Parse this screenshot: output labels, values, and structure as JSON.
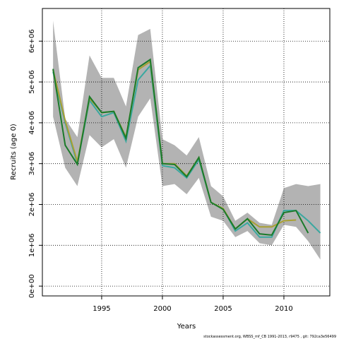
{
  "chart_data": {
    "type": "line",
    "x_label": "Years",
    "y_label": "Recruits (age 0)",
    "footer": "stockassessment.org, WBSS_mf_CB 1991-2013, r9475 , git: 792ca3e56499",
    "x": [
      1991,
      1992,
      1993,
      1994,
      1995,
      1996,
      1997,
      1998,
      1999,
      2000,
      2001,
      2002,
      2003,
      2004,
      2005,
      2006,
      2007,
      2008,
      2009,
      2010,
      2011,
      2012,
      2013
    ],
    "band": {
      "color": "#b3b3b3",
      "upper": [
        6500000,
        4100000,
        3650000,
        5650000,
        5100000,
        5100000,
        4400000,
        6150000,
        6300000,
        3600000,
        3450000,
        3200000,
        3650000,
        2450000,
        2200000,
        1600000,
        1800000,
        1550000,
        1500000,
        2400000,
        2500000,
        2450000,
        2500000
      ],
      "lower": [
        4150000,
        2900000,
        2450000,
        3700000,
        3400000,
        3600000,
        2900000,
        4150000,
        4600000,
        2450000,
        2500000,
        2250000,
        2650000,
        1700000,
        1600000,
        1200000,
        1350000,
        1050000,
        1000000,
        1500000,
        1450000,
        1100000,
        650000
      ]
    },
    "series": [
      {
        "color": "#3aa8a0",
        "values": [
          5250000,
          4000000,
          3000000,
          4550000,
          4150000,
          4250000,
          3550000,
          5050000,
          5400000,
          2950000,
          2900000,
          2650000,
          3100000,
          2050000,
          1900000,
          1350000,
          1550000,
          1200000,
          1200000,
          1850000,
          1850000,
          1600000,
          1300000
        ]
      },
      {
        "color": "#a9a032",
        "values": [
          5300000,
          4050000,
          3050000,
          4600000,
          4250000,
          4280000,
          3650000,
          5300000,
          5500000,
          3000000,
          3000000,
          2700000,
          3150000,
          2050000,
          1900000,
          1400000,
          1650000,
          1450000,
          1450000,
          1600000,
          1620000,
          null,
          null
        ]
      },
      {
        "color": "#1b7a2a",
        "values": [
          5320000,
          3450000,
          2980000,
          4640000,
          4250000,
          4280000,
          3620000,
          5350000,
          5550000,
          3000000,
          2980000,
          2680000,
          3150000,
          2050000,
          1880000,
          1400000,
          1650000,
          1280000,
          1250000,
          1800000,
          1850000,
          1300000,
          null
        ]
      }
    ],
    "xlim": [
      1990.12,
      2013.78
    ],
    "ylim": [
      -240000,
      6800000
    ],
    "xticks": [
      1995,
      2000,
      2005,
      2010
    ],
    "yticks": [
      {
        "value": 0,
        "label": "0e+00"
      },
      {
        "value": 1000000,
        "label": "1e+06"
      },
      {
        "value": 2000000,
        "label": "2e+06"
      },
      {
        "value": 3000000,
        "label": "3e+06"
      },
      {
        "value": 4000000,
        "label": "4e+06"
      },
      {
        "value": 5000000,
        "label": "5e+06"
      },
      {
        "value": 6000000,
        "label": "6e+06"
      }
    ],
    "grid": true
  }
}
